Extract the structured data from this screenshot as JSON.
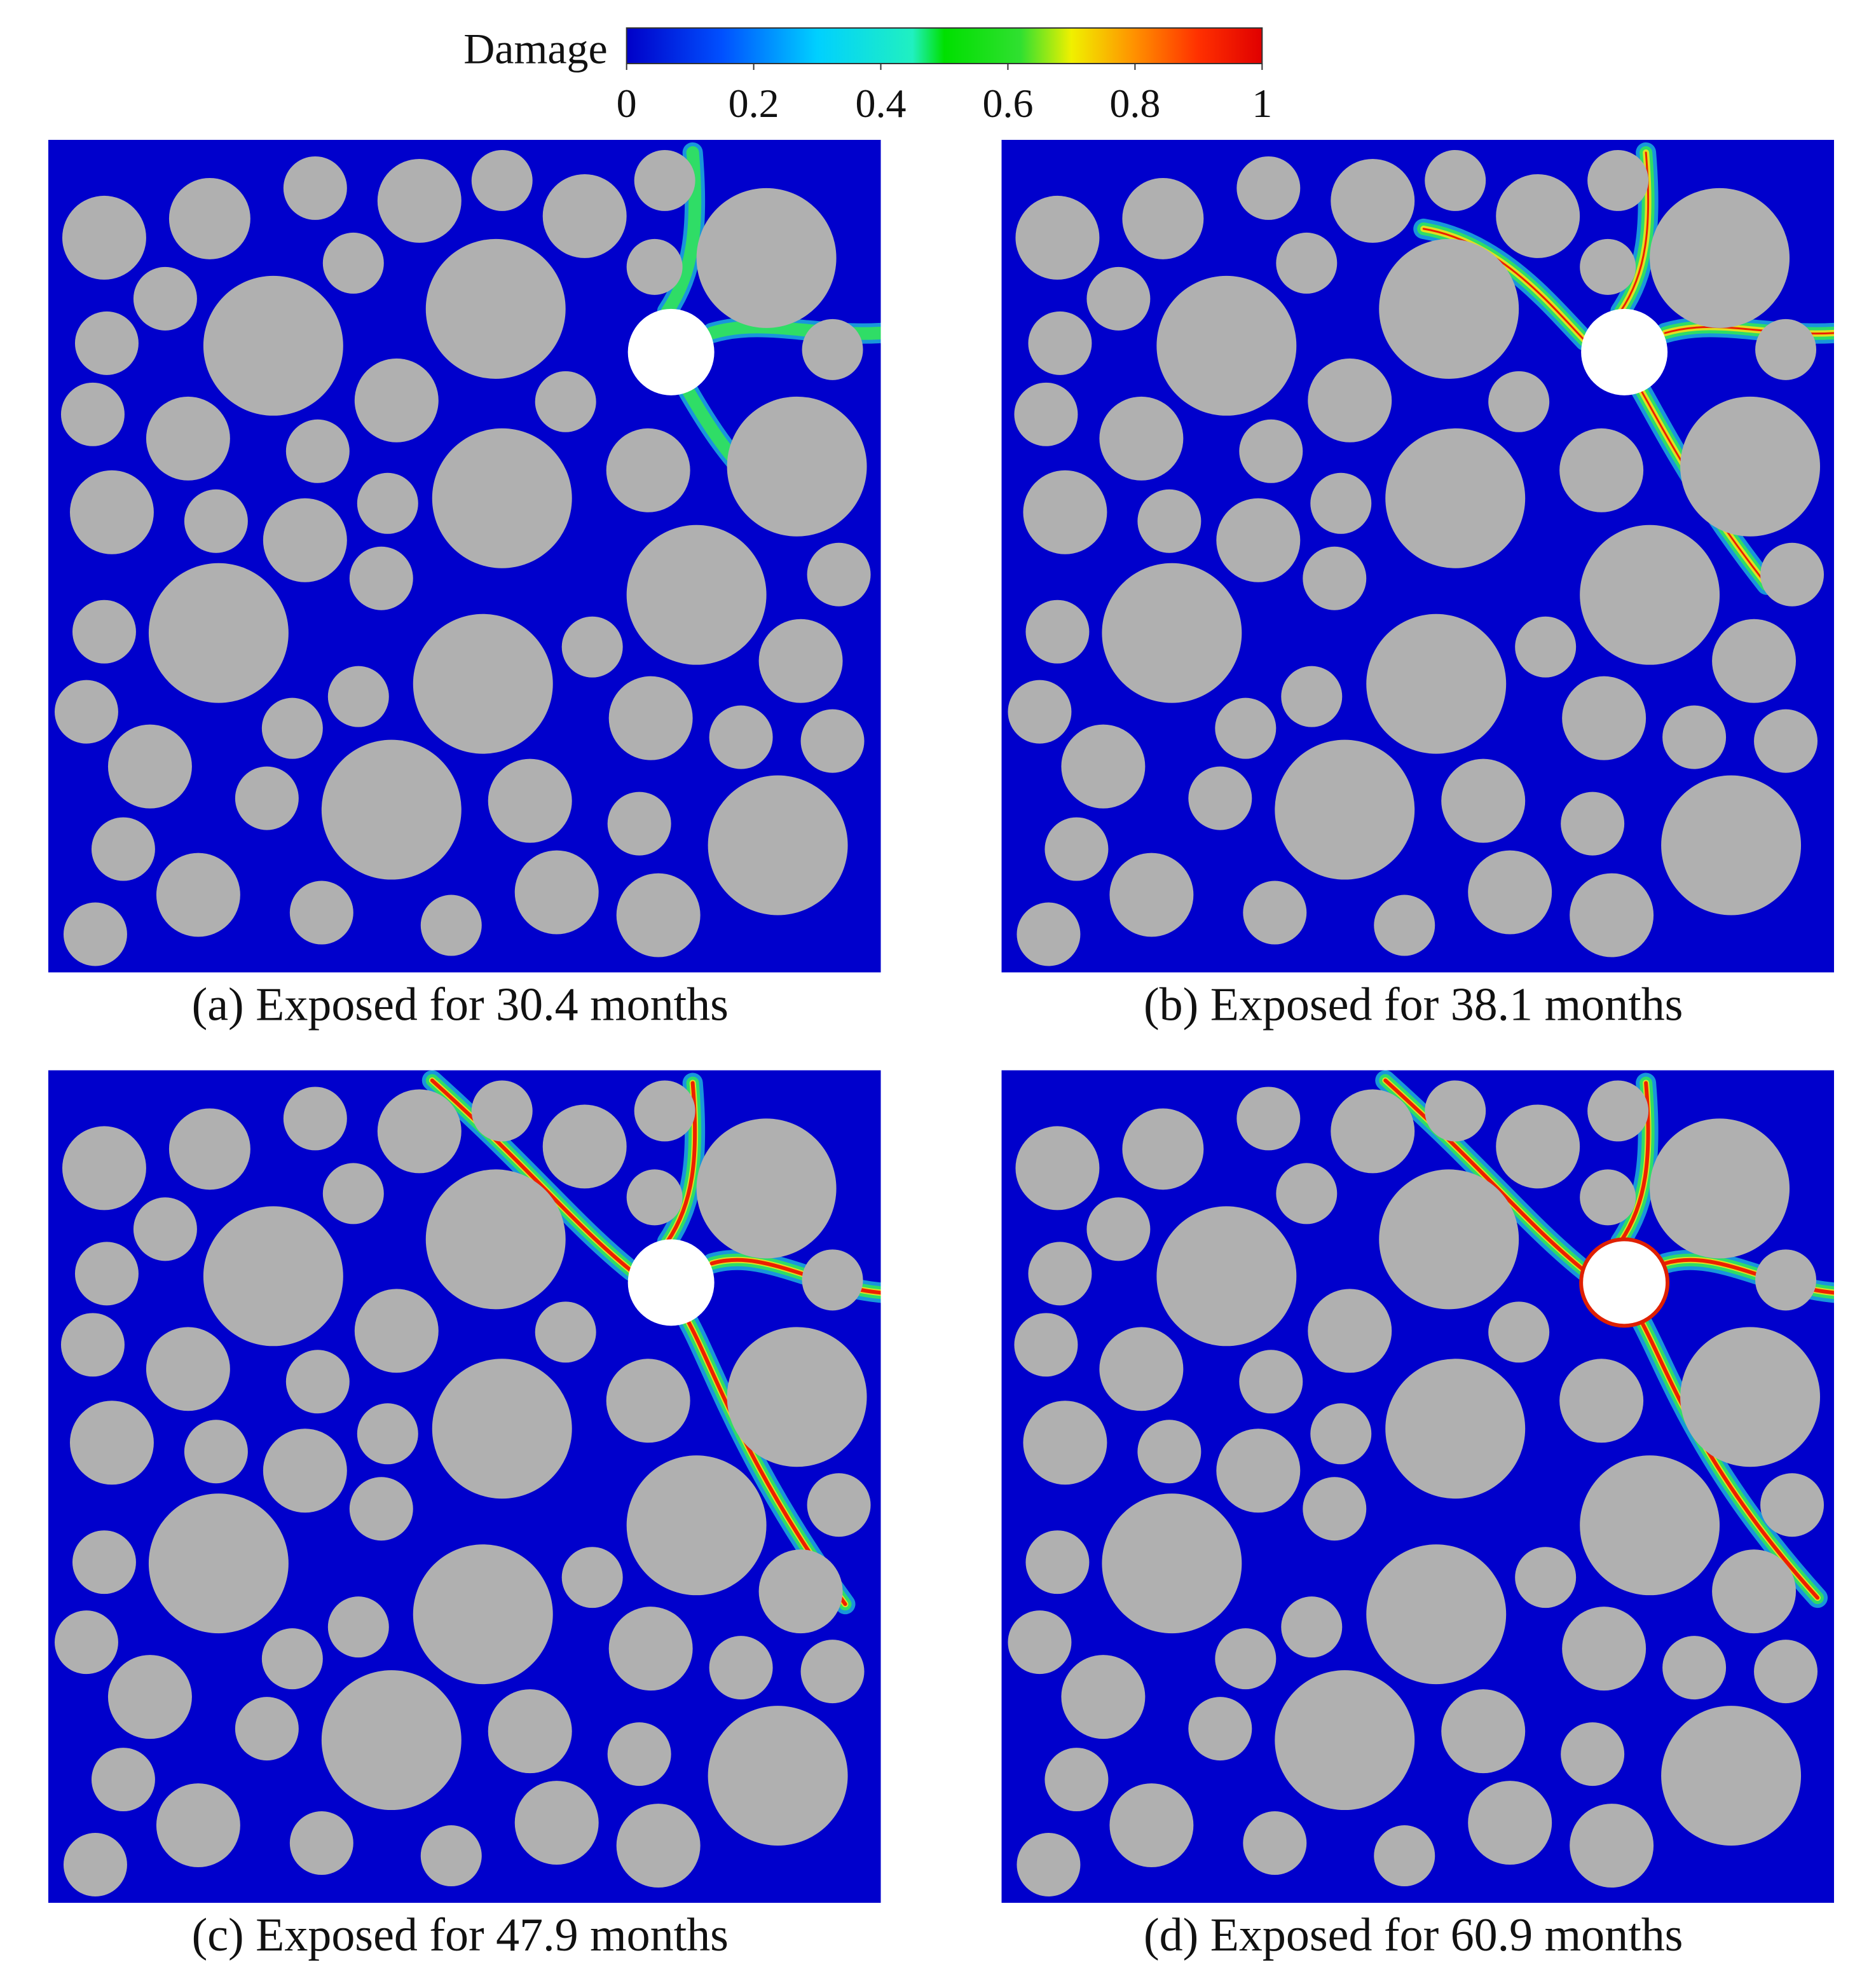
{
  "colorbar": {
    "label": "Damage",
    "range": [
      0,
      1
    ],
    "ticks": [
      0,
      0.2,
      0.4,
      0.6,
      0.8,
      1
    ]
  },
  "panels": [
    {
      "caption": "(a) Exposed for 30.4 months"
    },
    {
      "caption": "(b) Exposed for 38.1 months"
    },
    {
      "caption": "(c) Exposed for 47.9 months"
    },
    {
      "caption": "(d) Exposed for 60.9 months"
    }
  ]
}
